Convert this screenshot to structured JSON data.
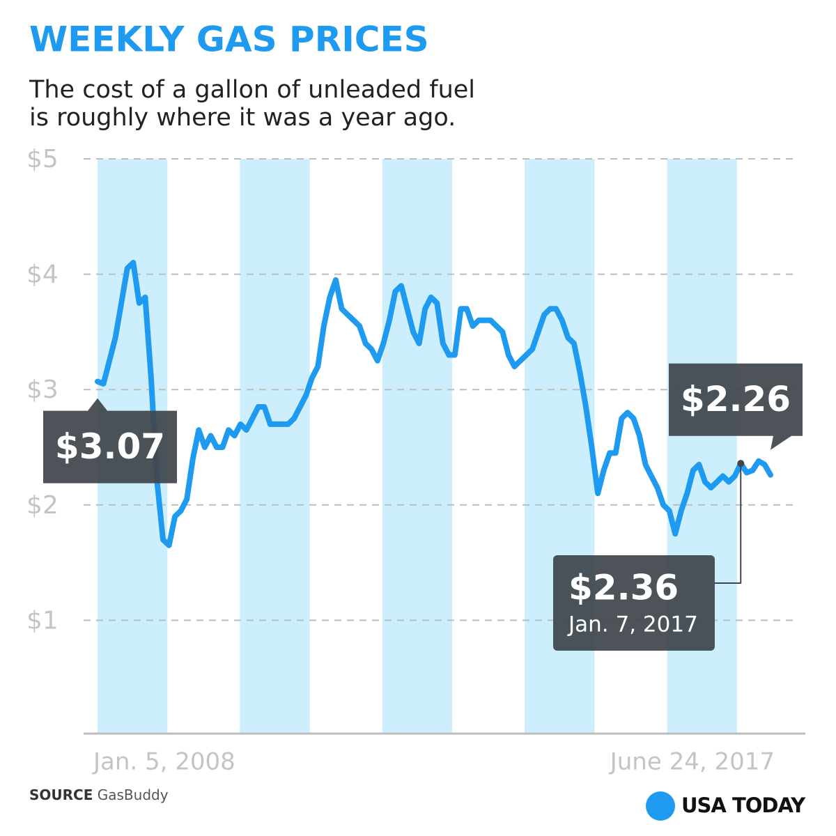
{
  "chart_data": {
    "type": "line",
    "title": "WEEKLY GAS PRICES",
    "subtitle": [
      "The cost of a gallon of unleaded fuel",
      "is roughly where it was a year ago."
    ],
    "categories": [
      "Jan. 5, 2008",
      null,
      null,
      null,
      null,
      null,
      null,
      null,
      null,
      null,
      null,
      null,
      null,
      null,
      null,
      null,
      null,
      null,
      null,
      null,
      null,
      null,
      null,
      null,
      null,
      null,
      null,
      null,
      null,
      null,
      null,
      null,
      null,
      null,
      null,
      null,
      null,
      null,
      null,
      null,
      null,
      null,
      null,
      null,
      null,
      null,
      null,
      null,
      null,
      null,
      null,
      null,
      null,
      null,
      null,
      null,
      null,
      null,
      null,
      null,
      null,
      null,
      null,
      null,
      null,
      null,
      null,
      null,
      null,
      null,
      null,
      null,
      null,
      null,
      null,
      null,
      null,
      null,
      null,
      null,
      null,
      null,
      null,
      null,
      null,
      null,
      null,
      null,
      null,
      null,
      null,
      null,
      null,
      null,
      null,
      null,
      null,
      null,
      null,
      null,
      null,
      null,
      null,
      null,
      null,
      null,
      null,
      null,
      null,
      null,
      null,
      null,
      null,
      "June 24, 2017"
    ],
    "values": [
      3.07,
      3.05,
      3.25,
      3.45,
      3.75,
      4.05,
      4.1,
      3.75,
      3.8,
      3.1,
      2.2,
      1.7,
      1.65,
      1.9,
      1.95,
      2.05,
      2.4,
      2.65,
      2.5,
      2.6,
      2.5,
      2.5,
      2.65,
      2.6,
      2.7,
      2.65,
      2.75,
      2.85,
      2.85,
      2.7,
      2.7,
      2.7,
      2.7,
      2.75,
      2.85,
      2.95,
      3.1,
      3.2,
      3.55,
      3.8,
      3.95,
      3.7,
      3.65,
      3.6,
      3.55,
      3.4,
      3.35,
      3.25,
      3.4,
      3.6,
      3.85,
      3.9,
      3.7,
      3.5,
      3.4,
      3.7,
      3.8,
      3.75,
      3.4,
      3.3,
      3.3,
      3.7,
      3.7,
      3.55,
      3.6,
      3.6,
      3.6,
      3.55,
      3.5,
      3.3,
      3.2,
      3.25,
      3.3,
      3.35,
      3.5,
      3.65,
      3.7,
      3.7,
      3.6,
      3.45,
      3.4,
      3.15,
      2.85,
      2.5,
      2.1,
      2.3,
      2.45,
      2.45,
      2.75,
      2.8,
      2.75,
      2.6,
      2.35,
      2.25,
      2.15,
      2.0,
      1.95,
      1.75,
      1.95,
      2.1,
      2.3,
      2.35,
      2.2,
      2.15,
      2.2,
      2.25,
      2.2,
      2.25,
      2.36,
      2.28,
      2.3,
      2.38,
      2.35,
      2.26
    ],
    "value_labels": [
      "$3.07",
      null,
      null,
      null,
      null,
      null,
      null,
      null,
      null,
      null,
      null,
      null,
      null,
      null,
      null,
      null,
      null,
      null,
      null,
      null,
      null,
      null,
      null,
      null,
      null,
      null,
      null,
      null,
      null,
      null,
      null,
      null,
      null,
      null,
      null,
      null,
      null,
      null,
      null,
      null,
      null,
      null,
      null,
      null,
      null,
      null,
      null,
      null,
      null,
      null,
      null,
      null,
      null,
      null,
      null,
      null,
      null,
      null,
      null,
      null,
      null,
      null,
      null,
      null,
      null,
      null,
      null,
      null,
      null,
      null,
      null,
      null,
      null,
      null,
      null,
      null,
      null,
      null,
      null,
      null,
      null,
      null,
      null,
      null,
      null,
      null,
      null,
      null,
      null,
      null,
      null,
      null,
      null,
      null,
      null,
      null,
      null,
      null,
      null,
      null,
      null,
      null,
      null,
      null,
      null,
      null,
      null,
      null,
      "$2.36",
      null,
      null,
      null,
      null,
      "$2.26"
    ],
    "annotation": "Jan. 7, 2017",
    "color": "#1e9bf0",
    "ylim": [
      0,
      5
    ],
    "yticks": [
      {
        "value": 1,
        "label": "$1"
      },
      {
        "value": 2,
        "label": "$2"
      },
      {
        "value": 3,
        "label": "$3"
      },
      {
        "value": 4,
        "label": "$4"
      },
      {
        "value": 5,
        "label": "$5"
      }
    ],
    "grid": true,
    "source_label": "SOURCE",
    "source": "GasBuddy",
    "logo": "USA TODAY"
  }
}
